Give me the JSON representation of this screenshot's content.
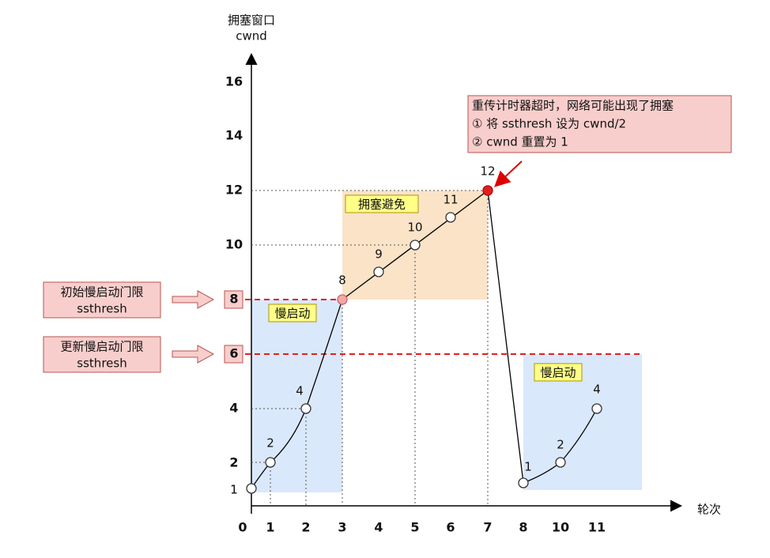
{
  "axes": {
    "y_title": "拥塞窗口",
    "y_subtitle": "cwnd",
    "x_title": "轮次",
    "y_labels": [
      "16",
      "14",
      "12",
      "10",
      "8",
      "6",
      "4",
      "2",
      "1"
    ],
    "x_labels": [
      "0",
      "1",
      "2",
      "3",
      "4",
      "5",
      "6",
      "7",
      "8",
      "10",
      "11"
    ]
  },
  "points": [
    "1",
    "2",
    "4",
    "8",
    "9",
    "10",
    "11",
    "12",
    "1",
    "2",
    "4"
  ],
  "regions": {
    "slow_start_1": "慢启动",
    "avoidance": "拥塞避免",
    "slow_start_2": "慢启动"
  },
  "thresholds": [
    {
      "lines": [
        "初始慢启动门限",
        "ssthresh"
      ],
      "value": "8"
    },
    {
      "lines": [
        "更新慢启动门限",
        "ssthresh"
      ],
      "value": "6"
    }
  ],
  "annotation": {
    "lines": [
      "重传计时器超时，网络可能出现了拥塞",
      "① 将 ssthresh 设为 cwnd/2",
      "② cwnd 重置为 1"
    ]
  }
}
